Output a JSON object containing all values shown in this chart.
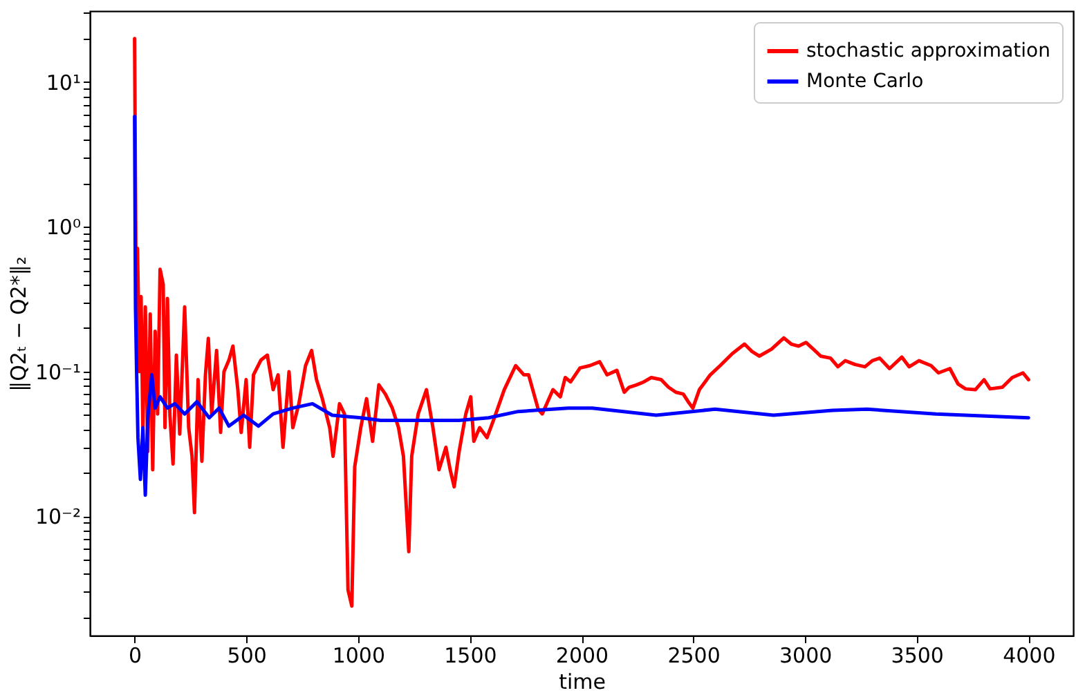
{
  "chart_data": {
    "type": "line",
    "xlabel": "time",
    "ylabel": "‖Q2ₜ − Q2*‖₂",
    "log": "y",
    "grid": false,
    "legend": "top right",
    "line_style": "solid",
    "xlim": [
      -200,
      4200
    ],
    "xticks": [
      0,
      500,
      1000,
      1500,
      2000,
      2500,
      3000,
      3500,
      4000
    ],
    "ylim": [
      0.0015,
      31
    ],
    "yticks": [
      {
        "value": 0.01,
        "label": "10⁻²"
      },
      {
        "value": 0.1,
        "label": "10⁻¹"
      },
      {
        "value": 1,
        "label": "10⁰"
      },
      {
        "value": 10,
        "label": "10¹"
      },
      {
        "value": 0.002,
        "label": null
      },
      {
        "value": 0.003,
        "label": null
      },
      {
        "value": 0.004,
        "label": null
      },
      {
        "value": 0.005,
        "label": null
      },
      {
        "value": 0.006,
        "label": null
      },
      {
        "value": 0.007,
        "label": null
      },
      {
        "value": 0.008,
        "label": null
      },
      {
        "value": 0.009,
        "label": null
      },
      {
        "value": 0.02,
        "label": null
      },
      {
        "value": 0.03,
        "label": null
      },
      {
        "value": 0.04,
        "label": null
      },
      {
        "value": 0.05,
        "label": null
      },
      {
        "value": 0.06,
        "label": null
      },
      {
        "value": 0.07,
        "label": null
      },
      {
        "value": 0.08,
        "label": null
      },
      {
        "value": 0.09,
        "label": null
      },
      {
        "value": 0.2,
        "label": null
      },
      {
        "value": 0.3,
        "label": null
      },
      {
        "value": 0.4,
        "label": null
      },
      {
        "value": 0.5,
        "label": null
      },
      {
        "value": 0.6,
        "label": null
      },
      {
        "value": 0.7,
        "label": null
      },
      {
        "value": 0.8,
        "label": null
      },
      {
        "value": 0.9,
        "label": null
      },
      {
        "value": 2,
        "label": null
      },
      {
        "value": 3,
        "label": null
      },
      {
        "value": 4,
        "label": null
      },
      {
        "value": 5,
        "label": null
      },
      {
        "value": 6,
        "label": null
      },
      {
        "value": 7,
        "label": null
      },
      {
        "value": 8,
        "label": null
      },
      {
        "value": 9,
        "label": null
      },
      {
        "value": 20,
        "label": null
      },
      {
        "value": 30,
        "label": null
      }
    ],
    "series": [
      {
        "name": "stochastic approximation",
        "color": "#ff0000",
        "x": [
          0,
          7,
          13,
          22,
          29,
          37,
          48,
          59,
          70,
          81,
          92,
          103,
          114,
          128,
          136,
          147,
          158,
          172,
          187,
          202,
          224,
          242,
          257,
          268,
          284,
          301,
          317,
          330,
          345,
          367,
          385,
          400,
          422,
          440,
          462,
          477,
          499,
          515,
          532,
          565,
          594,
          620,
          642,
          664,
          691,
          708,
          735,
          765,
          792,
          814,
          840,
          873,
          888,
          917,
          939,
          955,
          972,
          985,
          1012,
          1038,
          1065,
          1093,
          1122,
          1153,
          1181,
          1203,
          1227,
          1240,
          1269,
          1306,
          1335,
          1362,
          1393,
          1412,
          1430,
          1452,
          1482,
          1504,
          1518,
          1544,
          1577,
          1610,
          1654,
          1705,
          1742,
          1763,
          1806,
          1824,
          1872,
          1905,
          1927,
          1951,
          1993,
          2037,
          2081,
          2114,
          2158,
          2191,
          2213,
          2246,
          2279,
          2312,
          2356,
          2389,
          2422,
          2455,
          2477,
          2498,
          2527,
          2576,
          2620,
          2674,
          2729,
          2762,
          2795,
          2850,
          2905,
          2938,
          2971,
          3004,
          3037,
          3070,
          3114,
          3147,
          3180,
          3224,
          3268,
          3301,
          3334,
          3378,
          3433,
          3466,
          3510,
          3564,
          3597,
          3648,
          3685,
          3718,
          3762,
          3801,
          3828,
          3883,
          3927,
          3975,
          4000
        ],
        "values": [
          20,
          0.27,
          0.71,
          0.1,
          0.33,
          0.041,
          0.28,
          0.028,
          0.25,
          0.021,
          0.19,
          0.051,
          0.51,
          0.4,
          0.041,
          0.32,
          0.05,
          0.023,
          0.13,
          0.037,
          0.28,
          0.041,
          0.026,
          0.0106,
          0.088,
          0.024,
          0.095,
          0.17,
          0.051,
          0.14,
          0.038,
          0.1,
          0.12,
          0.15,
          0.075,
          0.038,
          0.088,
          0.03,
          0.095,
          0.12,
          0.13,
          0.075,
          0.095,
          0.03,
          0.1,
          0.041,
          0.06,
          0.11,
          0.14,
          0.088,
          0.065,
          0.041,
          0.026,
          0.06,
          0.051,
          0.0031,
          0.0024,
          0.022,
          0.041,
          0.065,
          0.033,
          0.081,
          0.07,
          0.056,
          0.041,
          0.026,
          0.0057,
          0.026,
          0.051,
          0.075,
          0.041,
          0.021,
          0.03,
          0.021,
          0.016,
          0.028,
          0.051,
          0.067,
          0.033,
          0.041,
          0.035,
          0.048,
          0.075,
          0.11,
          0.095,
          0.095,
          0.055,
          0.051,
          0.075,
          0.067,
          0.091,
          0.085,
          0.106,
          0.11,
          0.117,
          0.095,
          0.102,
          0.072,
          0.078,
          0.081,
          0.085,
          0.091,
          0.088,
          0.078,
          0.072,
          0.07,
          0.062,
          0.056,
          0.075,
          0.095,
          0.11,
          0.133,
          0.155,
          0.138,
          0.128,
          0.143,
          0.171,
          0.155,
          0.15,
          0.159,
          0.143,
          0.128,
          0.124,
          0.108,
          0.119,
          0.112,
          0.108,
          0.119,
          0.124,
          0.105,
          0.126,
          0.108,
          0.119,
          0.11,
          0.098,
          0.105,
          0.082,
          0.076,
          0.075,
          0.088,
          0.076,
          0.078,
          0.091,
          0.098,
          0.088
        ]
      },
      {
        "name": "Monte Carlo",
        "color": "#0000ff",
        "x": [
          0,
          4,
          9,
          15,
          26,
          37,
          48,
          59,
          77,
          92,
          114,
          147,
          180,
          224,
          279,
          334,
          378,
          422,
          488,
          554,
          620,
          708,
          796,
          884,
          1012,
          1100,
          1276,
          1452,
          1584,
          1716,
          1940,
          2048,
          2334,
          2597,
          2859,
          3123,
          3277,
          3586,
          4000
        ],
        "values": [
          5.8,
          0.28,
          0.1,
          0.035,
          0.018,
          0.041,
          0.014,
          0.048,
          0.095,
          0.056,
          0.067,
          0.056,
          0.06,
          0.051,
          0.062,
          0.048,
          0.056,
          0.042,
          0.05,
          0.042,
          0.051,
          0.056,
          0.06,
          0.05,
          0.048,
          0.046,
          0.046,
          0.046,
          0.048,
          0.053,
          0.056,
          0.056,
          0.05,
          0.055,
          0.05,
          0.054,
          0.055,
          0.051,
          0.048
        ]
      }
    ]
  }
}
